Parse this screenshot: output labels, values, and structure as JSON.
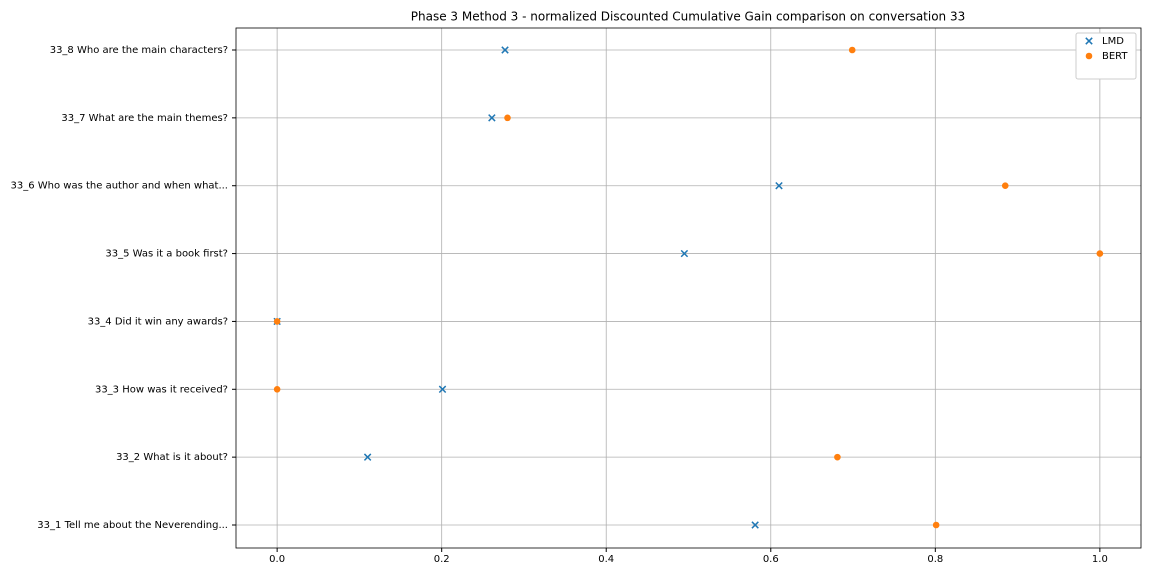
{
  "chart_data": {
    "type": "scatter",
    "title": "Phase 3 Method 3 - normalized Discounted Cumulative Gain comparison on conversation 33",
    "categories": [
      "33_1 Tell me about the Neverending...",
      "33_2 What is it about?",
      "33_3 How was it received?",
      "33_4 Did it win any awards?",
      "33_5 Was it a book first?",
      "33_6 Who was the author and when what...",
      "33_7 What are the main themes?",
      "33_8 Who are the main characters?"
    ],
    "series": [
      {
        "name": "LMD",
        "color": "#1f77b4",
        "marker": "x",
        "values": [
          0.581,
          0.11,
          0.201,
          0,
          0.495,
          0.61,
          0.261,
          0.277
        ]
      },
      {
        "name": "BERT",
        "color": "#ff7f0e",
        "marker": "o",
        "values": [
          0.801,
          0.681,
          0,
          0,
          1.0,
          0.885,
          0.28,
          0.699
        ]
      }
    ],
    "xlim": [
      -0.05,
      1.05
    ],
    "xticks": [
      {
        "value": 0,
        "label": "0.0"
      },
      0.2,
      0.4,
      0.6,
      0.8,
      {
        "value": 1,
        "label": "1.0"
      }
    ],
    "grid": true,
    "legend": "upper right"
  }
}
